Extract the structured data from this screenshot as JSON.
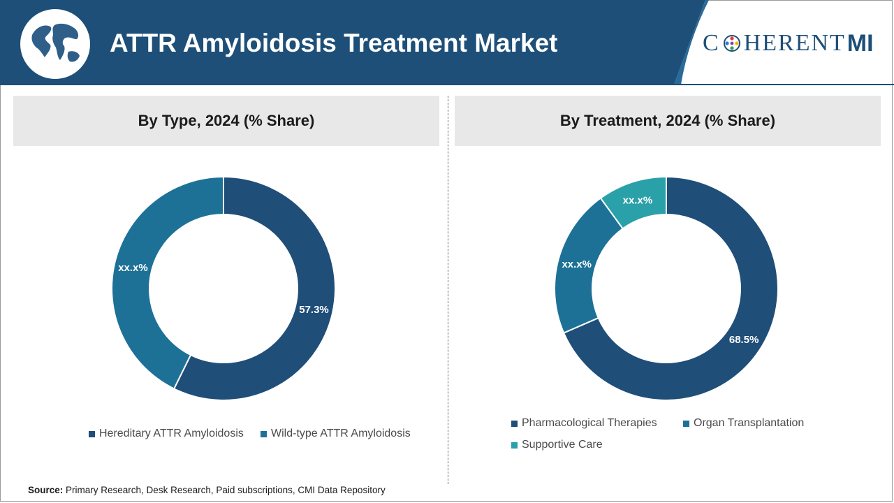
{
  "header": {
    "title": "ATTR Amyloidosis Treatment Market",
    "logo": {
      "text_before": "C",
      "text_after": "HERENT",
      "mi": "MI"
    },
    "colors": {
      "banner": "#1d4f78",
      "accent": "#2a6a9a"
    }
  },
  "source": {
    "label": "Source:",
    "text": "Primary Research, Desk Research, Paid subscriptions, CMI Data Repository"
  },
  "chart_data": [
    {
      "type": "pie",
      "title": "By Type, 2024 (% Share)",
      "donut": true,
      "slices": [
        {
          "name": "Hereditary ATTR Amyloidosis",
          "value": 57.3,
          "label": "57.3%",
          "color": "#1f4e79"
        },
        {
          "name": "Wild-type ATTR Amyloidosis",
          "value": 42.7,
          "label": "xx.x%",
          "color": "#1d7196"
        }
      ],
      "legend_position": "bottom"
    },
    {
      "type": "pie",
      "title": "By Treatment, 2024 (% Share)",
      "donut": true,
      "slices": [
        {
          "name": "Pharmacological Therapies",
          "value": 68.5,
          "label": "68.5%",
          "color": "#1f4e79"
        },
        {
          "name": "Organ Transplantation",
          "value": 21.5,
          "label": "xx.x%",
          "color": "#1d7196"
        },
        {
          "name": "Supportive Care",
          "value": 10.0,
          "label": "xx.x%",
          "color": "#2aa0a8"
        }
      ],
      "legend_position": "bottom"
    }
  ]
}
